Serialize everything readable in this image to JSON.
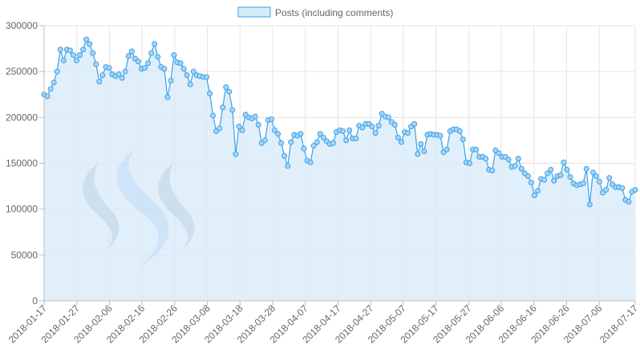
{
  "chart_data": {
    "type": "line",
    "title": "",
    "xlabel": "",
    "ylabel": "",
    "ylim": [
      0,
      300000
    ],
    "yticks": [
      0,
      50000,
      100000,
      150000,
      200000,
      250000,
      300000
    ],
    "ytick_labels": [
      "0",
      "50000",
      "100000",
      "150000",
      "200000",
      "250000",
      "300000"
    ],
    "x_start": "2018-01-17",
    "x_end": "2018-07-17",
    "xtick_labels": [
      "2018-01-17",
      "2018-01-27",
      "2018-02-06",
      "2018-02-16",
      "2018-02-26",
      "2018-03-08",
      "2018-03-18",
      "2018-03-28",
      "2018-04-07",
      "2018-04-17",
      "2018-04-27",
      "2018-05-07",
      "2018-05-17",
      "2018-05-27",
      "2018-06-06",
      "2018-06-16",
      "2018-06-26",
      "2018-07-06",
      "2018-07-17"
    ],
    "grid": true,
    "legend_position": "top-center",
    "series": [
      {
        "name": "Posts (including comments)",
        "color": "#36a2eb",
        "fill": "#d7eaf8",
        "values": [
          225000,
          223000,
          231000,
          238000,
          250000,
          274000,
          262000,
          274000,
          273000,
          268000,
          262000,
          268000,
          274000,
          285000,
          280000,
          270000,
          258000,
          239000,
          246000,
          255000,
          254000,
          247000,
          245000,
          247000,
          243000,
          250000,
          267000,
          272000,
          264000,
          261000,
          253000,
          254000,
          259000,
          270000,
          280000,
          266000,
          255000,
          253000,
          222000,
          240000,
          268000,
          260000,
          259000,
          253000,
          246000,
          236000,
          250000,
          246000,
          245000,
          244000,
          244000,
          226000,
          202000,
          185000,
          188000,
          211000,
          233000,
          228000,
          208000,
          160000,
          190000,
          186000,
          203000,
          200000,
          199000,
          201000,
          192000,
          172000,
          175000,
          197000,
          198000,
          186000,
          182000,
          172000,
          158000,
          147000,
          173000,
          181000,
          180000,
          182000,
          166000,
          153000,
          151000,
          169000,
          173000,
          182000,
          178000,
          174000,
          171000,
          172000,
          184000,
          186000,
          185000,
          175000,
          186000,
          177000,
          177000,
          191000,
          189000,
          193000,
          193000,
          190000,
          183000,
          191000,
          204000,
          201000,
          200000,
          195000,
          192000,
          178000,
          173000,
          184000,
          183000,
          190000,
          193000,
          160000,
          171000,
          163000,
          181000,
          182000,
          181000,
          181000,
          180000,
          162000,
          165000,
          185000,
          187000,
          187000,
          185000,
          176000,
          151000,
          150000,
          165000,
          165000,
          157000,
          157000,
          155000,
          143000,
          142000,
          164000,
          161000,
          157000,
          157000,
          154000,
          146000,
          147000,
          155000,
          144000,
          139000,
          136000,
          129000,
          115000,
          120000,
          133000,
          132000,
          139000,
          143000,
          131000,
          136000,
          137000,
          151000,
          143000,
          135000,
          128000,
          126000,
          127000,
          128000,
          144000,
          105000,
          140000,
          136000,
          130000,
          118000,
          121000,
          134000,
          127000,
          124000,
          124000,
          123000,
          110000,
          108000,
          119000,
          121000
        ]
      }
    ],
    "watermark": "steem-logo"
  }
}
